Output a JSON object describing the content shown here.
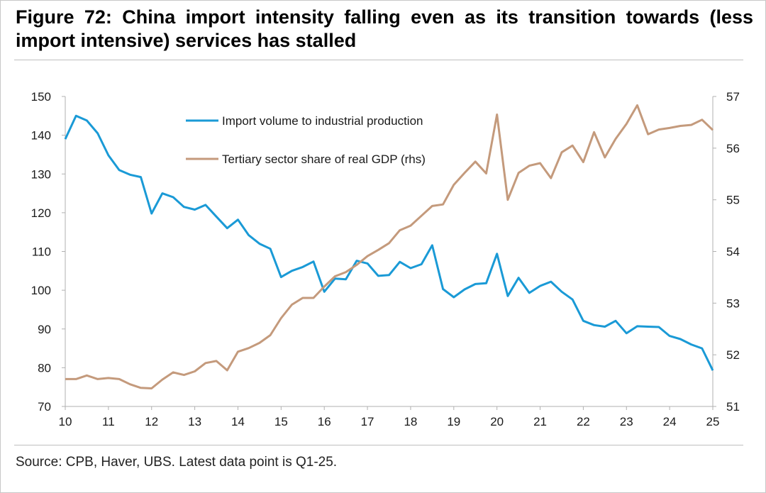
{
  "title": "Figure 72: China import intensity falling even as its transition towards (less import intensive) services has stalled",
  "source": "Source: CPB, Haver, UBS. Latest data point is Q1-25.",
  "colors": {
    "import_series": "#1a9ad6",
    "tertiary_series": "#c49a7c",
    "axis": "#b0b0b0",
    "text": "#1a1a1a"
  },
  "chart_data": {
    "type": "line",
    "title": "",
    "xlabel": "",
    "ylabel": "",
    "y2label": "",
    "x_ticks": [
      "10",
      "11",
      "12",
      "13",
      "14",
      "15",
      "16",
      "17",
      "18",
      "19",
      "20",
      "21",
      "22",
      "23",
      "24",
      "25"
    ],
    "x_range": [
      2010.0,
      2025.0
    ],
    "ylim": [
      70,
      150
    ],
    "y_ticks": [
      70,
      80,
      90,
      100,
      110,
      120,
      130,
      140,
      150
    ],
    "y2lim": [
      51,
      57
    ],
    "y2_ticks": [
      51,
      52,
      53,
      54,
      55,
      56,
      57
    ],
    "grid": false,
    "legend_position": "top-center",
    "series": [
      {
        "name": "Import volume to industrial production",
        "axis": "left",
        "x": [
          2010.0,
          2010.25,
          2010.5,
          2010.75,
          2011.0,
          2011.25,
          2011.5,
          2011.75,
          2012.0,
          2012.25,
          2012.5,
          2012.75,
          2013.0,
          2013.25,
          2013.5,
          2013.75,
          2014.0,
          2014.25,
          2014.5,
          2014.75,
          2015.0,
          2015.25,
          2015.5,
          2015.75,
          2016.0,
          2016.25,
          2016.5,
          2016.75,
          2017.0,
          2017.25,
          2017.5,
          2017.75,
          2018.0,
          2018.25,
          2018.5,
          2018.75,
          2019.0,
          2019.25,
          2019.5,
          2019.75,
          2020.0,
          2020.25,
          2020.5,
          2020.75,
          2021.0,
          2021.25,
          2021.5,
          2021.75,
          2022.0,
          2022.25,
          2022.5,
          2022.75,
          2023.0,
          2023.25,
          2023.5,
          2023.75,
          2024.0,
          2024.25,
          2024.5,
          2024.75,
          2025.0
        ],
        "values": [
          139.0,
          145.0,
          143.8,
          140.5,
          134.8,
          131.0,
          129.8,
          129.2,
          119.8,
          125.0,
          124.0,
          121.5,
          120.8,
          122.0,
          119.0,
          116.0,
          118.2,
          114.2,
          112.0,
          110.7,
          103.4,
          105.0,
          106.0,
          107.4,
          99.6,
          103.0,
          102.8,
          107.6,
          106.9,
          103.7,
          103.9,
          107.3,
          105.7,
          106.7,
          111.6,
          100.3,
          98.2,
          100.2,
          101.6,
          101.8,
          109.4,
          98.5,
          103.2,
          99.3,
          101.1,
          102.2,
          99.6,
          97.6,
          92.1,
          91.0,
          90.6,
          92.1,
          88.9,
          90.7,
          90.6,
          90.5,
          88.2,
          87.4,
          86.0,
          85.0,
          79.3
        ]
      },
      {
        "name": "Tertiary sector share of real GDP (rhs)",
        "axis": "right",
        "x": [
          2010.0,
          2010.25,
          2010.5,
          2010.75,
          2011.0,
          2011.25,
          2011.5,
          2011.75,
          2012.0,
          2012.25,
          2012.5,
          2012.75,
          2013.0,
          2013.25,
          2013.5,
          2013.75,
          2014.0,
          2014.25,
          2014.5,
          2014.75,
          2015.0,
          2015.25,
          2015.5,
          2015.75,
          2016.0,
          2016.25,
          2016.5,
          2016.75,
          2017.0,
          2017.25,
          2017.5,
          2017.75,
          2018.0,
          2018.25,
          2018.5,
          2018.75,
          2019.0,
          2019.25,
          2019.5,
          2019.75,
          2020.0,
          2020.25,
          2020.5,
          2020.75,
          2021.0,
          2021.25,
          2021.5,
          2021.75,
          2022.0,
          2022.25,
          2022.5,
          2022.75,
          2023.0,
          2023.25,
          2023.5,
          2023.75,
          2024.0,
          2024.25,
          2024.5,
          2024.75,
          2025.0
        ],
        "values": [
          51.53,
          51.53,
          51.6,
          51.53,
          51.55,
          51.53,
          51.43,
          51.36,
          51.35,
          51.52,
          51.66,
          51.61,
          51.68,
          51.84,
          51.88,
          51.7,
          52.06,
          52.13,
          52.23,
          52.38,
          52.71,
          52.97,
          53.1,
          53.1,
          53.32,
          53.52,
          53.6,
          53.74,
          53.91,
          54.03,
          54.16,
          54.41,
          54.5,
          54.69,
          54.88,
          54.91,
          55.29,
          55.52,
          55.74,
          55.51,
          56.65,
          55.0,
          55.52,
          55.66,
          55.71,
          55.42,
          55.92,
          56.05,
          55.73,
          56.31,
          55.82,
          56.18,
          56.47,
          56.83,
          56.27,
          56.36,
          56.39,
          56.43,
          56.45,
          56.55,
          56.35
        ]
      }
    ]
  }
}
